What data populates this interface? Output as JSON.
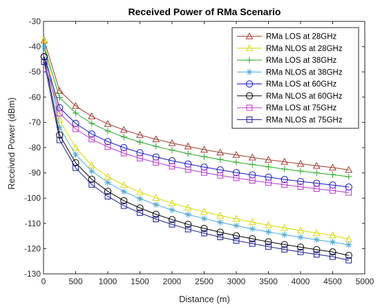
{
  "chart_data": {
    "type": "line",
    "title": "Received Power of RMa Scenario",
    "xlabel": "Distance (m)",
    "ylabel": "Received Power (dBm)",
    "xlim": [
      0,
      5000
    ],
    "ylim": [
      -130,
      -30
    ],
    "xticks": [
      0,
      500,
      1000,
      1500,
      2000,
      2500,
      3000,
      3500,
      4000,
      4500,
      5000
    ],
    "yticks": [
      -130,
      -120,
      -110,
      -100,
      -90,
      -80,
      -70,
      -60,
      -50,
      -40,
      -30
    ],
    "grid": false,
    "legend_position": "top-right",
    "x": [
      10,
      250,
      500,
      750,
      1000,
      1250,
      1500,
      1750,
      2000,
      2250,
      2500,
      2750,
      3000,
      3250,
      3500,
      3750,
      4000,
      4250,
      4500,
      4750
    ],
    "series": [
      {
        "name": "RMa LOS at 28GHz",
        "color": "#a03a2a",
        "marker": "triangle",
        "values": [
          -37.5,
          -57.5,
          -63.5,
          -67.6,
          -70.6,
          -73.0,
          -75.0,
          -76.7,
          -78.2,
          -79.5,
          -80.8,
          -81.9,
          -82.9,
          -83.9,
          -84.8,
          -85.6,
          -86.4,
          -87.2,
          -87.9,
          -88.8
        ]
      },
      {
        "name": "RMa NLOS at 28GHz",
        "color": "#d8d800",
        "marker": "triangle",
        "values": [
          -37.3,
          -69.0,
          -80.0,
          -87.0,
          -91.5,
          -94.8,
          -97.6,
          -99.9,
          -102.0,
          -103.8,
          -105.4,
          -106.9,
          -108.2,
          -109.5,
          -110.7,
          -111.8,
          -112.8,
          -113.8,
          -114.7,
          -116.3
        ]
      },
      {
        "name": "RMa LOS at 38GHz",
        "color": "#22aa22",
        "marker": "plus",
        "values": [
          -40.0,
          -60.2,
          -66.3,
          -70.4,
          -73.4,
          -75.8,
          -77.8,
          -79.5,
          -81.0,
          -82.4,
          -83.6,
          -84.7,
          -85.8,
          -86.7,
          -87.6,
          -88.5,
          -89.3,
          -90.0,
          -90.7,
          -91.5
        ]
      },
      {
        "name": "RMa NLOS at 38GHz",
        "color": "#4aa8e0",
        "marker": "asterisk",
        "values": [
          -40.0,
          -72.0,
          -82.8,
          -89.3,
          -93.8,
          -97.4,
          -100.2,
          -102.6,
          -104.7,
          -106.5,
          -108.1,
          -109.6,
          -110.9,
          -112.2,
          -113.4,
          -114.5,
          -115.5,
          -116.5,
          -117.4,
          -118.5
        ]
      },
      {
        "name": "RMa LOS at 60GHz",
        "color": "#1010cc",
        "marker": "circle",
        "values": [
          -44.0,
          -64.2,
          -70.4,
          -74.6,
          -77.6,
          -80.0,
          -82.0,
          -83.7,
          -85.2,
          -86.5,
          -87.7,
          -88.8,
          -89.9,
          -90.8,
          -91.7,
          -92.6,
          -93.4,
          -94.1,
          -94.8,
          -95.6
        ]
      },
      {
        "name": "RMa NLOS at 60GHz",
        "color": "#000000",
        "marker": "circle",
        "values": [
          -44.0,
          -75.0,
          -86.0,
          -92.5,
          -97.3,
          -101.0,
          -103.9,
          -106.4,
          -108.5,
          -110.4,
          -112.0,
          -113.5,
          -114.9,
          -116.1,
          -117.3,
          -118.4,
          -119.4,
          -120.4,
          -121.3,
          -122.7
        ]
      },
      {
        "name": "RMa LOS at 75GHz",
        "color": "#bb33cc",
        "marker": "square",
        "values": [
          -46.0,
          -66.4,
          -72.6,
          -76.7,
          -79.7,
          -82.2,
          -84.2,
          -85.9,
          -87.4,
          -88.7,
          -89.9,
          -91.0,
          -92.0,
          -93.0,
          -93.9,
          -94.7,
          -95.5,
          -96.3,
          -97.0,
          -97.8
        ]
      },
      {
        "name": "RMa NLOS at 75GHz",
        "color": "#1a1a99",
        "marker": "square",
        "values": [
          -46.0,
          -77.0,
          -88.0,
          -94.6,
          -99.3,
          -103.0,
          -105.8,
          -108.3,
          -110.4,
          -112.3,
          -113.9,
          -115.4,
          -116.8,
          -118.0,
          -119.2,
          -120.3,
          -121.3,
          -122.3,
          -123.2,
          -124.6
        ]
      }
    ]
  }
}
